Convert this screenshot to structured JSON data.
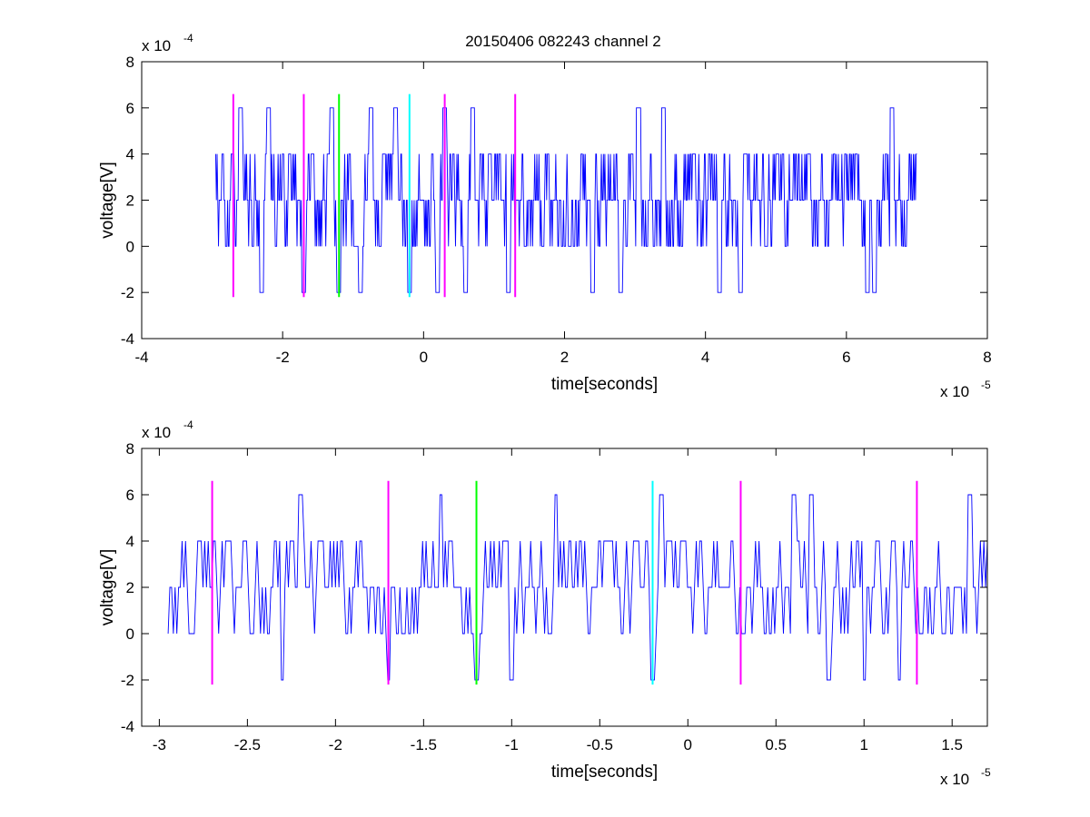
{
  "title": "20150406 082243 channel 2",
  "chart_data": [
    {
      "type": "line",
      "panel": "top",
      "title": "20150406 082243 channel 2",
      "xlabel": "time[seconds]",
      "ylabel": "voltage[V]",
      "x_exponent_label": "x 10",
      "x_exponent": "-5",
      "y_exponent_label": "x 10",
      "y_exponent": "-4",
      "xlim": [
        -4e-05,
        8e-05
      ],
      "ylim": [
        -0.0004,
        0.0008
      ],
      "xticks": [
        -4,
        -2,
        0,
        2,
        4,
        6,
        8
      ],
      "xtick_labels": [
        "-4",
        "-2",
        "0",
        "2",
        "4",
        "6",
        "8"
      ],
      "yticks": [
        -4,
        -2,
        0,
        2,
        4,
        6,
        8
      ],
      "ytick_labels": [
        "-4",
        "-2",
        "0",
        "2",
        "4",
        "6",
        "8"
      ],
      "grid": false,
      "series": [
        {
          "color": "#0000ff",
          "kind": "quantized-noise-trace",
          "x_start": -2.95e-05,
          "x_end": 7e-05,
          "levels": [
            -0.0002,
            0,
            0.0002,
            0.0004,
            0.0006
          ],
          "spikes_up": [
            -2.6e-05,
            -2.2e-05,
            -1.3e-05,
            -7.5e-06,
            -4e-06,
            3e-06,
            7e-06,
            3.05e-05,
            3.4e-05,
            6.65e-05
          ],
          "spikes_down": [
            -2.3e-05,
            -1.7e-05,
            -1.2e-05,
            -9e-06,
            -2e-06,
            2e-06,
            6e-06,
            1.2e-05,
            2.4e-05,
            2.8e-05,
            4.2e-05,
            4.5e-05,
            6.3e-05,
            6.4e-05
          ]
        }
      ],
      "markers": [
        {
          "x": -2.7e-05,
          "ymin": -0.00022,
          "ymax": 0.00066,
          "color": "#ff00ff"
        },
        {
          "x": -1.7e-05,
          "ymin": -0.00022,
          "ymax": 0.00066,
          "color": "#ff00ff"
        },
        {
          "x": -1.2e-05,
          "ymin": -0.00022,
          "ymax": 0.00066,
          "color": "#00ff00"
        },
        {
          "x": -2e-06,
          "ymin": -0.00022,
          "ymax": 0.00066,
          "color": "#00ffff"
        },
        {
          "x": 3e-06,
          "ymin": -0.00022,
          "ymax": 0.00066,
          "color": "#ff00ff"
        },
        {
          "x": 1.3e-05,
          "ymin": -0.00022,
          "ymax": 0.00066,
          "color": "#ff00ff"
        }
      ]
    },
    {
      "type": "line",
      "panel": "bottom",
      "title": "",
      "xlabel": "time[seconds]",
      "ylabel": "voltage[V]",
      "x_exponent_label": "x 10",
      "x_exponent": "-5",
      "y_exponent_label": "x 10",
      "y_exponent": "-4",
      "xlim": [
        -3.1e-05,
        1.7e-05
      ],
      "ylim": [
        -0.0004,
        0.0008
      ],
      "xticks": [
        -3,
        -2.5,
        -2,
        -1.5,
        -1,
        -0.5,
        0,
        0.5,
        1,
        1.5
      ],
      "xtick_labels": [
        "-3",
        "-2.5",
        "-2",
        "-1.5",
        "-1",
        "-0.5",
        "0",
        "0.5",
        "1",
        "1.5"
      ],
      "yticks": [
        -4,
        -2,
        0,
        2,
        4,
        6,
        8
      ],
      "ytick_labels": [
        "-4",
        "-2",
        "0",
        "2",
        "4",
        "6",
        "8"
      ],
      "grid": false,
      "series": [
        {
          "color": "#0000ff",
          "kind": "quantized-noise-trace",
          "x_start": -2.95e-05,
          "x_end": 1.7e-05,
          "levels": [
            -0.0002,
            0,
            0.0002,
            0.0004,
            0.0006
          ],
          "spikes_up": [
            -2.2e-05,
            -1.4e-05,
            -7.5e-06,
            -1.5e-06,
            6e-06,
            7e-06,
            1.6e-05
          ],
          "spikes_down": [
            -2.3e-05,
            -1.7e-05,
            -1.2e-05,
            -1e-05,
            -2e-06,
            6e-06,
            8e-06,
            1e-05,
            1.2e-05
          ]
        }
      ],
      "markers": [
        {
          "x": -2.7e-05,
          "ymin": -0.00022,
          "ymax": 0.00066,
          "color": "#ff00ff"
        },
        {
          "x": -1.7e-05,
          "ymin": -0.00022,
          "ymax": 0.00066,
          "color": "#ff00ff"
        },
        {
          "x": -1.2e-05,
          "ymin": -0.00022,
          "ymax": 0.00066,
          "color": "#00ff00"
        },
        {
          "x": -2e-06,
          "ymin": -0.00022,
          "ymax": 0.00066,
          "color": "#00ffff"
        },
        {
          "x": 3e-06,
          "ymin": -0.00022,
          "ymax": 0.00066,
          "color": "#ff00ff"
        },
        {
          "x": 1.3e-05,
          "ymin": -0.00022,
          "ymax": 0.00066,
          "color": "#ff00ff"
        }
      ]
    }
  ]
}
